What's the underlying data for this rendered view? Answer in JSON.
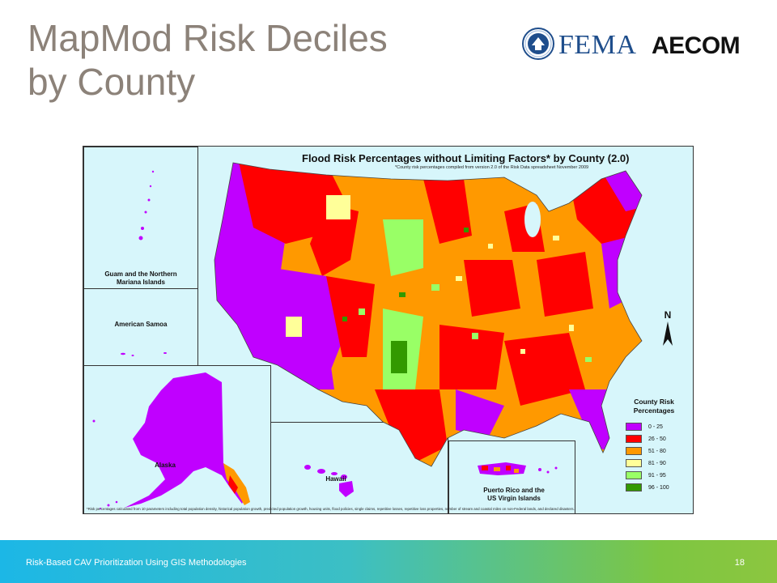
{
  "slide": {
    "title_line1": "MapMod Risk Deciles",
    "title_line2": "by County",
    "page_number": "18",
    "footer_text": "Risk-Based CAV Prioritization Using GIS Methodologies"
  },
  "logos": {
    "fema": "FEMA",
    "aecom": "AECOM"
  },
  "map": {
    "title": "Flood Risk Percentages without Limiting Factors* by County (2.0)",
    "subtitle": "*County risk percentages compiled from version 2.0 of the Risk Data spreadsheet     November 2009",
    "footnote": "*Risk percentages calculated from 10 parameters including total population density, historical population growth, predicted population growth, housing units, flood policies, single claims, repetitive losses, repetitive loss properties, number of stream and coastal miles on non-Federal lands, and declared disasters.",
    "north_label": "N",
    "insets": {
      "guam": [
        "Guam and the Northern",
        "Mariana Islands"
      ],
      "samoa": "American Samoa",
      "alaska": "Alaska",
      "hawaii": "Hawaii",
      "puerto_rico": [
        "Puerto Rico and the",
        "US Virgin Islands"
      ]
    },
    "legend": {
      "title_line1": "County Risk",
      "title_line2": "Percentages",
      "items": [
        {
          "label": "0 - 25",
          "color": "#c000ff"
        },
        {
          "label": "26 - 50",
          "color": "#ff0000"
        },
        {
          "label": "51 - 80",
          "color": "#ff9900"
        },
        {
          "label": "81 - 90",
          "color": "#ffff99"
        },
        {
          "label": "91 - 95",
          "color": "#99ff66"
        },
        {
          "label": "96 - 100",
          "color": "#339900"
        }
      ]
    }
  }
}
